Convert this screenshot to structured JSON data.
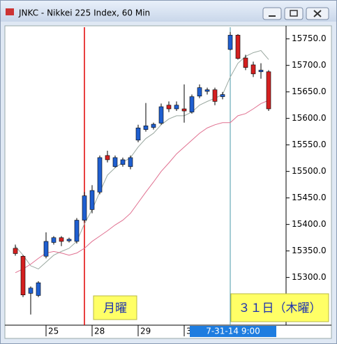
{
  "window_title": "JNKC - Nikkei 225 Index, 60 Min",
  "chart_data": {
    "type": "candlestick",
    "categories": [
      null,
      null,
      null,
      null,
      "25",
      null,
      null,
      null,
      null,
      null,
      "28",
      null,
      null,
      null,
      null,
      null,
      "29",
      null,
      null,
      null,
      null,
      null,
      "3",
      null,
      null,
      null,
      null,
      null,
      null,
      null,
      null,
      null,
      null,
      null
    ],
    "open": [
      15355,
      15340,
      15270,
      15266,
      15340,
      15366,
      15375,
      15369,
      15368,
      15408,
      15428,
      15461,
      15530,
      15509,
      15513,
      15509,
      15559,
      15579,
      15583,
      15591,
      15625,
      15618,
      15618,
      15612,
      15642,
      15651,
      15654,
      15641,
      15730,
      15757,
      15714,
      15701,
      15688,
      15688
    ],
    "high": [
      15362,
      15342,
      15283,
      15293,
      15385,
      15378,
      15378,
      15375,
      15412,
      15461,
      15474,
      15530,
      15539,
      15530,
      15526,
      15530,
      15588,
      15629,
      15592,
      15628,
      15632,
      15632,
      15664,
      15645,
      15664,
      15658,
      15658,
      15650,
      15763,
      15759,
      15720,
      15707,
      15704,
      15691
    ],
    "low": [
      15341,
      15263,
      15230,
      15263,
      15336,
      15362,
      15359,
      15366,
      15364,
      15404,
      15421,
      15457,
      15517,
      15507,
      15509,
      15504,
      15555,
      15575,
      15579,
      15588,
      15612,
      15614,
      15592,
      15609,
      15638,
      15645,
      15625,
      15636,
      15728,
      15711,
      15691,
      15678,
      15675,
      15614
    ],
    "close": [
      15345,
      15267,
      15280,
      15290,
      15368,
      15375,
      15368,
      15372,
      15408,
      15454,
      15464,
      15526,
      15522,
      15526,
      15522,
      15526,
      15582,
      15586,
      15589,
      15622,
      15618,
      15625,
      15614,
      15641,
      15658,
      15654,
      15632,
      15645,
      15757,
      15713,
      15696,
      15684,
      15691,
      15618
    ],
    "up_color": "#1f5fd0",
    "down_color": "#d42020",
    "series": [
      {
        "color": "#9aa8a0",
        "values": [
          15359,
          15342,
          15322,
          15316,
          15329,
          15342,
          15349,
          15355,
          15368,
          15401,
          15428,
          15461,
          15493,
          15507,
          15517,
          15526,
          15546,
          15562,
          15572,
          15588,
          15599,
          15605,
          15605,
          15612,
          15625,
          15632,
          15638,
          15645,
          15678,
          15704,
          15717,
          15724,
          15728,
          15711
        ]
      },
      {
        "color": "#e07090",
        "values": [
          15309,
          15316,
          15325,
          15336,
          15346,
          15349,
          15346,
          15342,
          15346,
          15355,
          15368,
          15378,
          15388,
          15399,
          15408,
          15421,
          15441,
          15461,
          15480,
          15500,
          15516,
          15533,
          15546,
          15559,
          15572,
          15582,
          15588,
          15592,
          15592,
          15605,
          15609,
          15618,
          15628,
          15634
        ]
      }
    ],
    "ylim": [
      15210,
      15772
    ],
    "yticks": [
      {
        "value": 15300,
        "label": "15300.0"
      },
      {
        "value": 15350,
        "label": "15350.0"
      },
      {
        "value": 15400,
        "label": "15400.0"
      },
      {
        "value": 15450,
        "label": "15450.0"
      },
      {
        "value": 15500,
        "label": "15500.0"
      },
      {
        "value": 15550,
        "label": "15550.0"
      },
      {
        "value": 15600,
        "label": "15600.0"
      },
      {
        "value": 15650,
        "label": "15650.0"
      },
      {
        "value": 15700,
        "label": "15700.0"
      },
      {
        "value": 15750,
        "label": "15750.0"
      }
    ],
    "cursor_label": "7-31-14   9:00",
    "annotations": [
      "月曜",
      "３１日（木曜）"
    ]
  }
}
